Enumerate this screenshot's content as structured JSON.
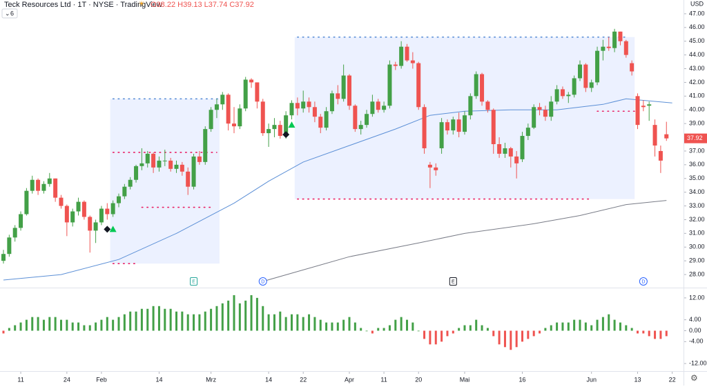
{
  "chart_data": {
    "type": "candlestick",
    "title": "Teck Resources Ltd · 1T · NYSE · TradingView",
    "ohlc_label": "O38.22 H39.13 L37.74 C37.92",
    "indicator_count": 6,
    "currency": "USD",
    "last_price_label": "37.92",
    "up_color": "#43a047",
    "down_color": "#ef5350",
    "candles": [
      [
        29.0,
        29.8,
        28.8,
        29.5
      ],
      [
        29.5,
        30.9,
        29.3,
        30.7
      ],
      [
        30.7,
        31.6,
        30.4,
        31.4
      ],
      [
        31.4,
        32.6,
        31.2,
        32.4
      ],
      [
        32.4,
        34.3,
        32.3,
        34.1
      ],
      [
        34.1,
        35.2,
        33.9,
        34.9
      ],
      [
        34.9,
        35.0,
        33.8,
        34.1
      ],
      [
        34.1,
        34.8,
        33.9,
        34.6
      ],
      [
        34.6,
        35.4,
        34.4,
        35.0
      ],
      [
        35.0,
        35.0,
        33.3,
        33.6
      ],
      [
        33.6,
        33.8,
        32.8,
        33.0
      ],
      [
        33.0,
        33.1,
        30.8,
        31.8
      ],
      [
        31.8,
        32.8,
        31.5,
        32.6
      ],
      [
        32.6,
        33.6,
        32.3,
        33.3
      ],
      [
        33.3,
        33.4,
        32.0,
        32.2
      ],
      [
        32.2,
        32.3,
        29.6,
        31.2
      ],
      [
        31.2,
        32.0,
        30.3,
        31.8
      ],
      [
        31.8,
        33.0,
        31.6,
        32.8
      ],
      [
        32.8,
        33.2,
        32.0,
        32.4
      ],
      [
        32.4,
        33.4,
        32.2,
        33.2
      ],
      [
        33.2,
        33.9,
        32.9,
        33.7
      ],
      [
        33.7,
        34.6,
        33.5,
        34.4
      ],
      [
        34.4,
        35.1,
        34.2,
        34.9
      ],
      [
        34.9,
        36.0,
        34.7,
        35.9
      ],
      [
        35.9,
        37.2,
        35.6,
        36.1
      ],
      [
        36.1,
        37.0,
        35.8,
        36.8
      ],
      [
        36.8,
        36.9,
        35.4,
        35.8
      ],
      [
        35.8,
        36.6,
        35.5,
        36.3
      ],
      [
        36.3,
        37.1,
        35.9,
        36.3
      ],
      [
        36.3,
        36.5,
        35.5,
        35.7
      ],
      [
        35.7,
        36.3,
        35.4,
        36.0
      ],
      [
        36.0,
        36.2,
        35.2,
        35.5
      ],
      [
        35.5,
        35.8,
        33.8,
        34.4
      ],
      [
        34.4,
        36.8,
        34.2,
        36.6
      ],
      [
        36.6,
        37.0,
        36.0,
        36.2
      ],
      [
        36.2,
        38.8,
        36.0,
        38.6
      ],
      [
        38.6,
        40.2,
        38.4,
        40.0
      ],
      [
        40.0,
        40.8,
        39.4,
        40.4
      ],
      [
        40.4,
        41.3,
        40.0,
        41.1
      ],
      [
        41.1,
        41.2,
        38.5,
        39.0
      ],
      [
        39.0,
        40.2,
        38.3,
        38.8
      ],
      [
        38.8,
        40.4,
        38.6,
        40.1
      ],
      [
        40.1,
        42.4,
        39.9,
        42.2
      ],
      [
        42.2,
        42.3,
        41.6,
        42.0
      ],
      [
        42.0,
        42.0,
        40.1,
        40.6
      ],
      [
        40.6,
        40.8,
        38.1,
        38.3
      ],
      [
        38.3,
        39.0,
        37.3,
        38.6
      ],
      [
        38.6,
        39.4,
        38.0,
        38.9
      ],
      [
        38.9,
        39.2,
        37.9,
        38.1
      ],
      [
        38.1,
        39.9,
        37.9,
        39.6
      ],
      [
        39.6,
        40.7,
        39.3,
        40.5
      ],
      [
        40.5,
        40.9,
        39.6,
        40.1
      ],
      [
        40.1,
        41.4,
        39.8,
        40.6
      ],
      [
        40.6,
        40.9,
        39.8,
        40.2
      ],
      [
        40.2,
        40.6,
        39.1,
        39.5
      ],
      [
        39.5,
        39.7,
        38.3,
        38.7
      ],
      [
        38.7,
        40.2,
        38.5,
        39.9
      ],
      [
        39.9,
        41.4,
        39.7,
        41.2
      ],
      [
        41.2,
        41.8,
        40.4,
        40.8
      ],
      [
        40.8,
        43.3,
        40.6,
        42.5
      ],
      [
        42.5,
        42.6,
        40.0,
        40.3
      ],
      [
        40.3,
        40.4,
        38.4,
        38.6
      ],
      [
        38.6,
        39.2,
        38.2,
        38.9
      ],
      [
        38.9,
        40.0,
        38.7,
        39.7
      ],
      [
        39.7,
        41.1,
        39.5,
        40.6
      ],
      [
        40.6,
        40.8,
        39.8,
        40.0
      ],
      [
        40.0,
        40.6,
        39.8,
        40.3
      ],
      [
        40.3,
        43.6,
        40.1,
        43.3
      ],
      [
        43.3,
        43.5,
        42.9,
        43.2
      ],
      [
        43.2,
        45.0,
        43.0,
        44.6
      ],
      [
        44.6,
        44.8,
        43.5,
        43.6
      ],
      [
        43.6,
        44.2,
        43.0,
        43.4
      ],
      [
        43.4,
        43.5,
        40.0,
        40.2
      ],
      [
        40.2,
        40.4,
        36.8,
        37.2
      ],
      [
        36.0,
        36.2,
        34.3,
        35.8
      ],
      [
        35.8,
        36.1,
        35.2,
        35.6
      ],
      [
        37.2,
        39.4,
        36.8,
        39.1
      ],
      [
        39.1,
        39.3,
        38.2,
        38.5
      ],
      [
        38.5,
        39.5,
        38.2,
        39.3
      ],
      [
        39.3,
        39.8,
        38.0,
        38.4
      ],
      [
        38.4,
        39.9,
        38.2,
        39.6
      ],
      [
        39.6,
        41.2,
        39.3,
        41.0
      ],
      [
        41.0,
        42.8,
        40.8,
        42.6
      ],
      [
        42.6,
        42.7,
        40.3,
        40.6
      ],
      [
        40.6,
        40.7,
        39.8,
        40.0
      ],
      [
        40.0,
        40.1,
        36.8,
        37.5
      ],
      [
        37.5,
        38.0,
        36.5,
        36.8
      ],
      [
        36.8,
        37.6,
        36.5,
        37.2
      ],
      [
        37.2,
        37.3,
        35.8,
        36.6
      ],
      [
        36.6,
        37.0,
        35.0,
        36.1
      ],
      [
        36.4,
        38.4,
        36.2,
        38.1
      ],
      [
        38.1,
        39.0,
        37.8,
        38.7
      ],
      [
        38.7,
        40.4,
        38.6,
        40.2
      ],
      [
        40.2,
        40.5,
        39.6,
        40.0
      ],
      [
        40.0,
        40.3,
        39.2,
        39.5
      ],
      [
        39.5,
        41.0,
        39.2,
        40.6
      ],
      [
        40.6,
        41.8,
        40.4,
        41.5
      ],
      [
        41.5,
        41.7,
        40.8,
        41.0
      ],
      [
        41.0,
        41.3,
        40.5,
        41.1
      ],
      [
        41.1,
        42.5,
        40.9,
        42.3
      ],
      [
        42.3,
        43.6,
        42.1,
        43.3
      ],
      [
        43.3,
        43.4,
        41.3,
        41.6
      ],
      [
        41.6,
        42.2,
        41.3,
        42.0
      ],
      [
        42.0,
        44.6,
        41.8,
        44.3
      ],
      [
        44.3,
        45.1,
        43.6,
        44.6
      ],
      [
        44.6,
        45.3,
        44.3,
        44.5
      ],
      [
        44.5,
        45.9,
        44.2,
        45.7
      ],
      [
        45.7,
        45.7,
        44.7,
        45.0
      ],
      [
        45.0,
        45.1,
        43.8,
        44.0
      ],
      [
        43.4,
        43.6,
        42.5,
        42.8
      ],
      [
        41.0,
        41.2,
        38.6,
        38.9
      ],
      [
        40.3,
        40.7,
        39.9,
        40.2
      ],
      [
        40.3,
        40.6,
        39.2,
        40.4
      ],
      [
        38.9,
        39.3,
        36.6,
        37.4
      ],
      [
        37.0,
        37.4,
        35.4,
        36.3
      ],
      [
        38.22,
        39.13,
        37.74,
        37.92
      ]
    ],
    "ylim": [
      27.4,
      47.6
    ],
    "yticks": [
      {
        "value": 28,
        "label": "28.00"
      },
      {
        "value": 29,
        "label": "29.00"
      },
      {
        "value": 30,
        "label": "30.00"
      },
      {
        "value": 31,
        "label": "31.00"
      },
      {
        "value": 32,
        "label": "32.00"
      },
      {
        "value": 33,
        "label": "33.00"
      },
      {
        "value": 34,
        "label": "34.00"
      },
      {
        "value": 35,
        "label": "35.00"
      },
      {
        "value": 36,
        "label": "36.00"
      },
      {
        "value": 37,
        "label": "37.00"
      },
      {
        "value": 38,
        "label": "38.00"
      },
      {
        "value": 39,
        "label": "39.00"
      },
      {
        "value": 40,
        "label": "40.00"
      },
      {
        "value": 41,
        "label": "41.00"
      },
      {
        "value": 42,
        "label": "42.00"
      },
      {
        "value": 43,
        "label": "43.00"
      },
      {
        "value": 44,
        "label": "44.00"
      },
      {
        "value": 45,
        "label": "45.00"
      },
      {
        "value": 46,
        "label": "46.00"
      },
      {
        "value": 47,
        "label": "47.00"
      }
    ],
    "xticks": [
      {
        "value": 3,
        "label": "11"
      },
      {
        "value": 11,
        "label": "24"
      },
      {
        "value": 17,
        "label": "Feb"
      },
      {
        "value": 27,
        "label": "14"
      },
      {
        "value": 36,
        "label": "Mrz"
      },
      {
        "value": 46,
        "label": "14"
      },
      {
        "value": 52,
        "label": "22"
      },
      {
        "value": 60,
        "label": "Apr"
      },
      {
        "value": 66,
        "label": "11"
      },
      {
        "value": 72,
        "label": "20"
      },
      {
        "value": 80,
        "label": "Mai"
      },
      {
        "value": 90,
        "label": "16"
      },
      {
        "value": 102,
        "label": "Jun"
      },
      {
        "value": 110,
        "label": "13"
      },
      {
        "value": 116,
        "label": "22"
      }
    ],
    "ma_lines": [
      {
        "color": "#5b8fd6",
        "x": [
          0,
          10,
          20,
          30,
          40,
          46,
          52,
          60,
          68,
          74,
          80,
          88,
          96,
          104,
          108,
          116
        ],
        "values": [
          27.6,
          28.0,
          29.1,
          31.0,
          33.2,
          34.8,
          36.2,
          37.4,
          38.6,
          39.6,
          39.9,
          40.0,
          40.0,
          40.4,
          40.8,
          40.5
        ]
      },
      {
        "color": "#787b86",
        "x": [
          45,
          60,
          72,
          80,
          92,
          100,
          108,
          115
        ],
        "values": [
          27.5,
          29.3,
          30.3,
          31.0,
          31.7,
          32.3,
          33.1,
          33.4
        ]
      }
    ],
    "zones": [
      {
        "start": 19,
        "end": 37,
        "top": 40.8,
        "bottom": 28.8
      },
      {
        "start": 51,
        "end": 109,
        "top": 45.3,
        "bottom": 33.5
      }
    ],
    "levels": [
      {
        "start": 19,
        "end": 38,
        "value": 40.8,
        "color": "#5b8fd6"
      },
      {
        "start": 19,
        "end": 37,
        "value": 36.9,
        "color": "#e91e63"
      },
      {
        "start": 24,
        "end": 36,
        "value": 32.9,
        "color": "#e91e63"
      },
      {
        "start": 19,
        "end": 23,
        "value": 28.8,
        "color": "#e91e63"
      },
      {
        "start": 51,
        "end": 108,
        "value": 45.3,
        "color": "#5b8fd6"
      },
      {
        "start": 51,
        "end": 102,
        "value": 33.5,
        "color": "#e91e63"
      },
      {
        "start": 103,
        "end": 110,
        "value": 39.9,
        "color": "#e91e63"
      }
    ],
    "events": [
      {
        "index": 33,
        "label": "E",
        "color": "#26a69a"
      },
      {
        "index": 45,
        "label": "D",
        "color": "#2962ff"
      },
      {
        "index": 78,
        "label": "E",
        "color": "#131722"
      },
      {
        "index": 111,
        "label": "D",
        "color": "#2962ff"
      }
    ],
    "signals": [
      {
        "index": 18,
        "value": 31.3,
        "shape": "diamond",
        "color": "#131722"
      },
      {
        "index": 19,
        "value": 31.3,
        "shape": "triangle",
        "color": "#00c853"
      },
      {
        "index": 49,
        "value": 38.2,
        "shape": "diamond",
        "color": "#131722"
      },
      {
        "index": 50,
        "value": 38.9,
        "shape": "triangle",
        "color": "#00c853"
      }
    ],
    "histogram": [
      -1,
      1,
      2,
      3,
      4,
      5,
      5,
      4,
      5,
      5,
      4,
      4,
      3,
      3,
      2,
      2,
      3,
      4,
      5,
      4,
      5,
      6,
      7,
      7,
      8,
      8,
      9,
      9,
      8,
      8,
      7,
      7,
      6,
      6,
      6,
      7,
      8,
      9,
      10,
      11,
      13,
      10,
      11,
      13,
      12,
      9,
      6,
      6,
      7,
      5,
      6,
      6,
      5,
      6,
      5,
      4,
      3,
      3,
      3,
      4,
      5,
      3,
      1,
      0,
      -1,
      1,
      1,
      2,
      4,
      5,
      4,
      3,
      0,
      -3,
      -5,
      -5,
      -4,
      -2,
      -1,
      1,
      2,
      2,
      4,
      2,
      1,
      -2,
      -5,
      -6,
      -7,
      -6,
      -4,
      -3,
      -2,
      -1,
      1,
      2,
      3,
      3,
      3,
      4,
      4,
      3,
      2,
      4,
      5,
      6,
      4,
      3,
      2,
      1,
      -1,
      -1,
      -2,
      -3,
      -3,
      -2
    ],
    "hlim": [
      -14,
      15
    ],
    "hticks": [
      {
        "value": 12,
        "label": "12.00"
      },
      {
        "value": 4,
        "label": "4.00"
      },
      {
        "value": 0,
        "label": "0.00"
      },
      {
        "value": -4,
        "label": "-4.00"
      },
      {
        "value": -12,
        "label": "-12.00"
      }
    ]
  }
}
